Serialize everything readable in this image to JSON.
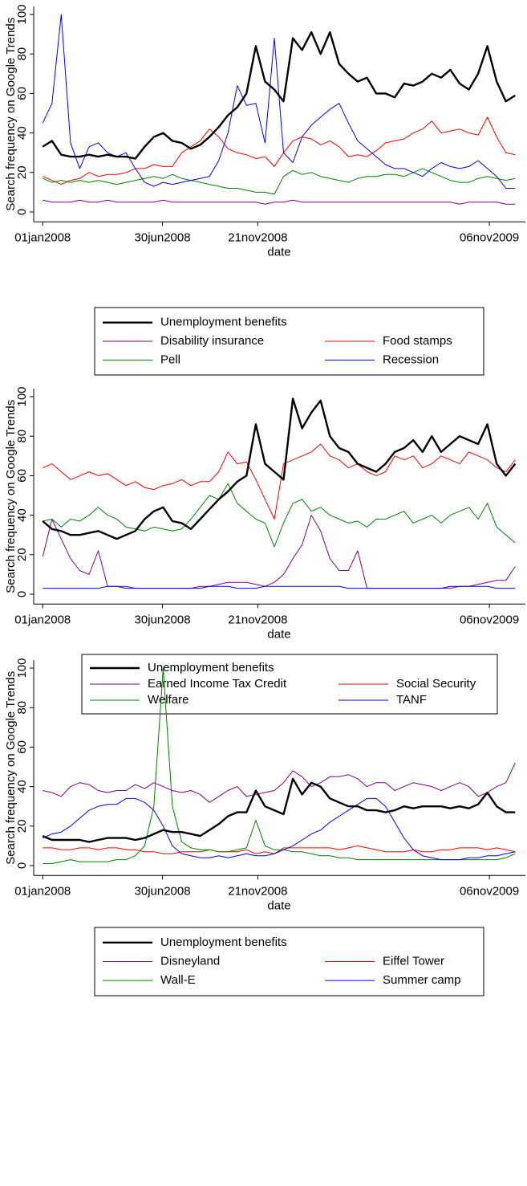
{
  "chart_data": [
    {
      "type": "line",
      "ylabel": "Search frequency on Google Trends",
      "xlabel": "date",
      "xlim": [
        "2007-12-22",
        "2009-12-28"
      ],
      "ylim": [
        -5,
        104
      ],
      "yticks": [
        0,
        20,
        40,
        60,
        80,
        100
      ],
      "xticks": [
        {
          "value": "2008-01-01",
          "label": "01jan2008"
        },
        {
          "value": "2008-06-30",
          "label": "30jun2008"
        },
        {
          "value": "2008-11-21",
          "label": "21nov2008"
        },
        {
          "value": "2009-11-06",
          "label": "06nov2009"
        }
      ],
      "x": [
        "2008-01-01",
        "2008-01-15",
        "2008-01-29",
        "2008-02-12",
        "2008-02-26",
        "2008-03-11",
        "2008-03-25",
        "2008-04-08",
        "2008-04-22",
        "2008-05-06",
        "2008-05-20",
        "2008-06-03",
        "2008-06-17",
        "2008-07-01",
        "2008-07-15",
        "2008-07-29",
        "2008-08-12",
        "2008-08-26",
        "2008-09-09",
        "2008-09-23",
        "2008-10-07",
        "2008-10-21",
        "2008-11-04",
        "2008-11-18",
        "2008-12-02",
        "2008-12-16",
        "2008-12-30",
        "2009-01-13",
        "2009-01-27",
        "2009-02-10",
        "2009-02-24",
        "2009-03-10",
        "2009-03-24",
        "2009-04-07",
        "2009-04-21",
        "2009-05-05",
        "2009-05-19",
        "2009-06-02",
        "2009-06-16",
        "2009-06-30",
        "2009-07-14",
        "2009-07-28",
        "2009-08-11",
        "2009-08-25",
        "2009-09-08",
        "2009-09-22",
        "2009-10-06",
        "2009-10-20",
        "2009-11-03",
        "2009-11-17",
        "2009-12-01",
        "2009-12-15"
      ],
      "series": [
        {
          "name": "Unemployment benefits",
          "color": "#000000",
          "values": [
            33,
            36,
            29,
            28,
            28,
            29,
            28,
            29,
            28,
            28,
            27,
            33,
            38,
            40,
            36,
            35,
            32,
            34,
            38,
            43,
            49,
            53,
            60,
            84,
            66,
            62,
            56,
            88,
            82,
            91,
            80,
            91,
            75,
            70,
            66,
            68,
            60,
            60,
            58,
            65,
            64,
            66,
            70,
            68,
            72,
            65,
            62,
            70,
            84,
            66,
            56,
            59
          ]
        },
        {
          "name": "Disability insurance",
          "color": "#800080",
          "values": [
            6,
            5,
            5,
            5,
            6,
            5,
            5,
            6,
            5,
            5,
            5,
            5,
            5,
            6,
            5,
            5,
            5,
            5,
            5,
            5,
            5,
            5,
            5,
            5,
            4,
            5,
            5,
            6,
            5,
            5,
            5,
            5,
            5,
            5,
            5,
            5,
            5,
            5,
            5,
            5,
            5,
            5,
            5,
            5,
            5,
            4,
            5,
            5,
            5,
            5,
            4,
            4
          ]
        },
        {
          "name": "Food stamps",
          "color": "#ff0000",
          "values": [
            18,
            16,
            14,
            16,
            17,
            20,
            18,
            19,
            19,
            20,
            22,
            22,
            24,
            23,
            23,
            30,
            33,
            36,
            42,
            38,
            32,
            30,
            29,
            27,
            28,
            23,
            30,
            36,
            38,
            37,
            34,
            36,
            33,
            28,
            29,
            28,
            31,
            35,
            36,
            37,
            40,
            42,
            46,
            40,
            41,
            42,
            40,
            39,
            48,
            38,
            30,
            29
          ]
        },
        {
          "name": "Pell",
          "color": "#008000",
          "values": [
            17,
            15,
            16,
            15,
            16,
            15,
            16,
            15,
            14,
            15,
            16,
            17,
            18,
            17,
            19,
            17,
            16,
            15,
            14,
            13,
            12,
            12,
            11,
            10,
            10,
            9,
            18,
            21,
            19,
            20,
            18,
            17,
            16,
            15,
            17,
            18,
            18,
            19,
            19,
            18,
            20,
            22,
            20,
            18,
            16,
            15,
            15,
            17,
            18,
            17,
            16,
            17
          ]
        },
        {
          "name": "Recession",
          "color": "#0000ff",
          "values": [
            45,
            55,
            100,
            35,
            22,
            33,
            35,
            30,
            28,
            30,
            22,
            15,
            13,
            15,
            14,
            15,
            16,
            17,
            18,
            26,
            40,
            64,
            54,
            55,
            35,
            88,
            30,
            25,
            38,
            44,
            48,
            52,
            55,
            45,
            36,
            32,
            28,
            24,
            22,
            22,
            20,
            18,
            22,
            25,
            23,
            22,
            23,
            26,
            22,
            18,
            12,
            12
          ]
        }
      ]
    },
    {
      "type": "line",
      "ylabel": "Search frequency on Google Trends",
      "xlabel": "date",
      "xlim": [
        "2007-12-22",
        "2009-12-28"
      ],
      "ylim": [
        -5,
        104
      ],
      "yticks": [
        0,
        20,
        40,
        60,
        80,
        100
      ],
      "xticks": [
        {
          "value": "2008-01-01",
          "label": "01jan2008"
        },
        {
          "value": "2008-06-30",
          "label": "30jun2008"
        },
        {
          "value": "2008-11-21",
          "label": "21nov2008"
        },
        {
          "value": "2009-11-06",
          "label": "06nov2009"
        }
      ],
      "x": [
        "2008-01-01",
        "2008-01-15",
        "2008-01-29",
        "2008-02-12",
        "2008-02-26",
        "2008-03-11",
        "2008-03-25",
        "2008-04-08",
        "2008-04-22",
        "2008-05-06",
        "2008-05-20",
        "2008-06-03",
        "2008-06-17",
        "2008-07-01",
        "2008-07-15",
        "2008-07-29",
        "2008-08-12",
        "2008-08-26",
        "2008-09-09",
        "2008-09-23",
        "2008-10-07",
        "2008-10-21",
        "2008-11-04",
        "2008-11-18",
        "2008-12-02",
        "2008-12-16",
        "2008-12-30",
        "2009-01-13",
        "2009-01-27",
        "2009-02-10",
        "2009-02-24",
        "2009-03-10",
        "2009-03-24",
        "2009-04-07",
        "2009-04-21",
        "2009-05-05",
        "2009-05-19",
        "2009-06-02",
        "2009-06-16",
        "2009-06-30",
        "2009-07-14",
        "2009-07-28",
        "2009-08-11",
        "2009-08-25",
        "2009-09-08",
        "2009-09-22",
        "2009-10-06",
        "2009-10-20",
        "2009-11-03",
        "2009-11-17",
        "2009-12-01",
        "2009-12-15"
      ],
      "series": [
        {
          "name": "Unemployment benefits",
          "color": "#000000",
          "values": [
            37,
            33,
            32,
            30,
            30,
            31,
            32,
            30,
            28,
            30,
            32,
            38,
            42,
            44,
            37,
            36,
            33,
            38,
            43,
            48,
            52,
            57,
            60,
            86,
            66,
            62,
            58,
            99,
            84,
            92,
            98,
            80,
            74,
            72,
            66,
            64,
            62,
            66,
            72,
            74,
            78,
            72,
            80,
            72,
            76,
            80,
            78,
            76,
            86,
            66,
            60,
            66
          ]
        },
        {
          "name": "Earned Income Tax Credit",
          "color": "#800080",
          "values": [
            19,
            38,
            28,
            18,
            12,
            10,
            22,
            4,
            4,
            4,
            3,
            3,
            3,
            3,
            3,
            3,
            3,
            4,
            4,
            5,
            6,
            6,
            6,
            5,
            4,
            6,
            10,
            18,
            25,
            40,
            32,
            18,
            12,
            12,
            22,
            3,
            3,
            3,
            3,
            3,
            3,
            3,
            3,
            3,
            3,
            4,
            4,
            5,
            6,
            7,
            7,
            14
          ]
        },
        {
          "name": "Social Security",
          "color": "#ff0000",
          "values": [
            64,
            66,
            62,
            58,
            60,
            62,
            60,
            61,
            58,
            55,
            57,
            54,
            53,
            55,
            56,
            58,
            55,
            57,
            57,
            62,
            72,
            66,
            67,
            58,
            48,
            38,
            66,
            68,
            70,
            72,
            76,
            70,
            68,
            64,
            66,
            62,
            60,
            62,
            70,
            68,
            70,
            64,
            66,
            70,
            68,
            66,
            72,
            70,
            68,
            64,
            62,
            68
          ]
        },
        {
          "name": "Welfare",
          "color": "#008000",
          "values": [
            37,
            38,
            34,
            38,
            37,
            40,
            44,
            40,
            38,
            34,
            33,
            32,
            34,
            33,
            32,
            33,
            38,
            44,
            50,
            48,
            56,
            46,
            42,
            38,
            36,
            24,
            36,
            46,
            48,
            42,
            44,
            40,
            38,
            36,
            37,
            34,
            38,
            38,
            40,
            42,
            36,
            38,
            40,
            36,
            40,
            42,
            44,
            38,
            46,
            34,
            30,
            26
          ]
        },
        {
          "name": "TANF",
          "color": "#0000ff",
          "values": [
            3,
            3,
            3,
            3,
            3,
            3,
            3,
            4,
            4,
            3,
            3,
            3,
            3,
            3,
            3,
            3,
            3,
            3,
            4,
            4,
            4,
            3,
            3,
            3,
            4,
            4,
            4,
            4,
            4,
            4,
            4,
            4,
            4,
            3,
            3,
            3,
            3,
            3,
            3,
            3,
            3,
            3,
            3,
            3,
            4,
            4,
            4,
            4,
            4,
            3,
            3,
            3
          ]
        }
      ]
    },
    {
      "type": "line",
      "ylabel": "Search frequency on Google Trends",
      "xlabel": "date",
      "xlim": [
        "2007-12-22",
        "2009-12-28"
      ],
      "ylim": [
        -5,
        104
      ],
      "yticks": [
        0,
        20,
        40,
        60,
        80,
        100
      ],
      "xticks": [
        {
          "value": "2008-01-01",
          "label": "01jan2008"
        },
        {
          "value": "2008-06-30",
          "label": "30jun2008"
        },
        {
          "value": "2008-11-21",
          "label": "21nov2008"
        },
        {
          "value": "2009-11-06",
          "label": "06nov2009"
        }
      ],
      "x": [
        "2008-01-01",
        "2008-01-15",
        "2008-01-29",
        "2008-02-12",
        "2008-02-26",
        "2008-03-11",
        "2008-03-25",
        "2008-04-08",
        "2008-04-22",
        "2008-05-06",
        "2008-05-20",
        "2008-06-03",
        "2008-06-17",
        "2008-07-01",
        "2008-07-15",
        "2008-07-29",
        "2008-08-12",
        "2008-08-26",
        "2008-09-09",
        "2008-09-23",
        "2008-10-07",
        "2008-10-21",
        "2008-11-04",
        "2008-11-18",
        "2008-12-02",
        "2008-12-16",
        "2008-12-30",
        "2009-01-13",
        "2009-01-27",
        "2009-02-10",
        "2009-02-24",
        "2009-03-10",
        "2009-03-24",
        "2009-04-07",
        "2009-04-21",
        "2009-05-05",
        "2009-05-19",
        "2009-06-02",
        "2009-06-16",
        "2009-06-30",
        "2009-07-14",
        "2009-07-28",
        "2009-08-11",
        "2009-08-25",
        "2009-09-08",
        "2009-09-22",
        "2009-10-06",
        "2009-10-20",
        "2009-11-03",
        "2009-11-17",
        "2009-12-01",
        "2009-12-15"
      ],
      "series": [
        {
          "name": "Unemployment benefits",
          "color": "#000000",
          "values": [
            15,
            13,
            13,
            13,
            13,
            12,
            13,
            14,
            14,
            14,
            13,
            14,
            16,
            18,
            17,
            17,
            16,
            15,
            18,
            21,
            25,
            27,
            27,
            38,
            30,
            28,
            26,
            44,
            36,
            42,
            40,
            34,
            32,
            30,
            30,
            28,
            28,
            27,
            28,
            30,
            29,
            30,
            30,
            30,
            29,
            30,
            29,
            31,
            37,
            30,
            27,
            27
          ]
        },
        {
          "name": "Disneyland",
          "color": "#800080",
          "values": [
            38,
            37,
            35,
            40,
            42,
            41,
            38,
            37,
            38,
            38,
            41,
            39,
            42,
            40,
            38,
            37,
            38,
            36,
            32,
            35,
            38,
            40,
            35,
            36,
            37,
            38,
            42,
            48,
            45,
            40,
            42,
            45,
            45,
            46,
            44,
            40,
            42,
            42,
            38,
            40,
            42,
            41,
            40,
            38,
            40,
            42,
            40,
            35,
            37,
            40,
            42,
            52
          ]
        },
        {
          "name": "Eiffel Tower",
          "color": "#ff0000",
          "values": [
            9,
            9,
            8,
            8,
            9,
            9,
            8,
            9,
            9,
            8,
            8,
            7,
            7,
            6,
            6,
            7,
            7,
            7,
            8,
            7,
            7,
            7,
            8,
            6,
            7,
            6,
            9,
            9,
            9,
            9,
            9,
            9,
            8,
            9,
            10,
            9,
            8,
            7,
            7,
            7,
            8,
            7,
            7,
            8,
            8,
            9,
            9,
            9,
            8,
            9,
            8,
            7
          ]
        },
        {
          "name": "Wall-E",
          "color": "#008000",
          "values": [
            1,
            1,
            2,
            3,
            2,
            2,
            2,
            2,
            3,
            3,
            5,
            10,
            30,
            100,
            30,
            12,
            9,
            8,
            8,
            7,
            7,
            8,
            9,
            23,
            10,
            8,
            8,
            7,
            7,
            6,
            5,
            5,
            4,
            4,
            3,
            3,
            3,
            3,
            3,
            3,
            3,
            3,
            3,
            3,
            3,
            3,
            3,
            3,
            3,
            3,
            4,
            6
          ]
        },
        {
          "name": "Summer camp",
          "color": "#0000ff",
          "values": [
            14,
            16,
            17,
            20,
            24,
            28,
            30,
            31,
            31,
            34,
            34,
            32,
            28,
            20,
            10,
            6,
            5,
            4,
            4,
            5,
            4,
            5,
            6,
            5,
            5,
            6,
            8,
            10,
            13,
            16,
            18,
            22,
            25,
            28,
            31,
            34,
            34,
            30,
            22,
            14,
            8,
            5,
            4,
            3,
            3,
            3,
            4,
            4,
            5,
            5,
            6,
            7
          ]
        }
      ]
    }
  ]
}
